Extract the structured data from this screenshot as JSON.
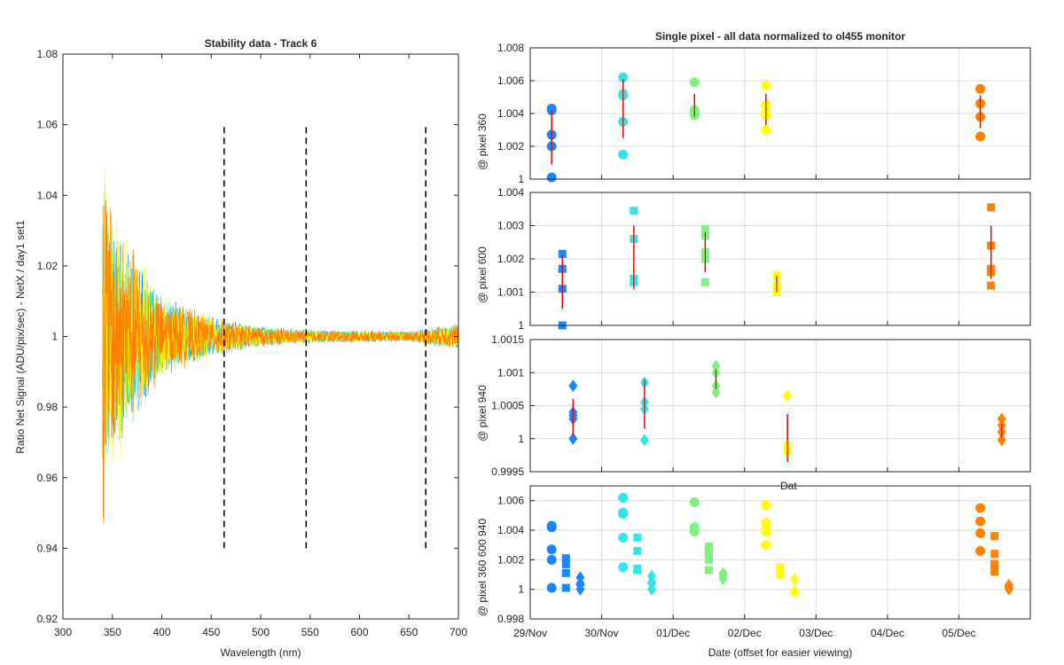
{
  "figure": {
    "left_panel": {
      "title": "Stability data - Track 6",
      "xlabel": "Wavelength (nm)",
      "ylabel": "Ratio Net Signal (ADU/pix/sec) - NetX / day1 set1"
    },
    "right_panel": {
      "title": "Single pixel - all data normalized to ol455 monitor",
      "xlabel": "Date (offset for easier viewing)",
      "hidden_label_fragment": "Dat"
    }
  },
  "chart_data": [
    {
      "type": "line",
      "title": "Stability data - Track 6",
      "xlabel": "Wavelength (nm)",
      "ylabel": "Ratio Net Signal (ADU/pix/sec) - NetX / day1 set1",
      "xlim": [
        300,
        700
      ],
      "ylim": [
        0.92,
        1.08
      ],
      "xticks": [
        "300",
        "350",
        "400",
        "450",
        "500",
        "550",
        "600",
        "650",
        "700"
      ],
      "yticks": [
        "0.92",
        "0.94",
        "0.96",
        "0.98",
        "1",
        "1.02",
        "1.04",
        "1.06",
        "1.08"
      ],
      "grid": false,
      "data_range_x": [
        340,
        700
      ],
      "series": [
        {
          "color": "#1a85ff",
          "envelope": [
            [
              340,
              0.055
            ],
            [
              350,
              0.035
            ],
            [
              400,
              0.012
            ],
            [
              450,
              0.006
            ],
            [
              500,
              0.003
            ],
            [
              550,
              0.002
            ],
            [
              650,
              0.0015
            ],
            [
              700,
              0.004
            ]
          ]
        },
        {
          "color": "#33e6e6",
          "envelope": [
            [
              340,
              0.055
            ],
            [
              350,
              0.035
            ],
            [
              400,
              0.012
            ],
            [
              450,
              0.006
            ],
            [
              500,
              0.003
            ],
            [
              550,
              0.002
            ],
            [
              650,
              0.0015
            ],
            [
              700,
              0.004
            ]
          ]
        },
        {
          "color": "#80f080",
          "envelope": [
            [
              340,
              0.055
            ],
            [
              350,
              0.035
            ],
            [
              400,
              0.012
            ],
            [
              450,
              0.006
            ],
            [
              500,
              0.003
            ],
            [
              550,
              0.002
            ],
            [
              650,
              0.0015
            ],
            [
              700,
              0.004
            ]
          ]
        },
        {
          "color": "#ffff00",
          "envelope": [
            [
              340,
              0.063
            ],
            [
              350,
              0.04
            ],
            [
              400,
              0.012
            ],
            [
              450,
              0.006
            ],
            [
              500,
              0.003
            ],
            [
              550,
              0.002
            ],
            [
              650,
              0.0015
            ],
            [
              700,
              0.004
            ]
          ]
        },
        {
          "color": "#ff8000",
          "envelope": [
            [
              340,
              0.06
            ],
            [
              350,
              0.038
            ],
            [
              400,
              0.012
            ],
            [
              450,
              0.006
            ],
            [
              500,
              0.003
            ],
            [
              550,
              0.002
            ],
            [
              650,
              0.0015
            ],
            [
              700,
              0.004
            ]
          ]
        }
      ],
      "dashed_vlines": [
        {
          "x": 463,
          "y": [
            0.94,
            1.06
          ]
        },
        {
          "x": 546,
          "y": [
            0.94,
            1.06
          ]
        },
        {
          "x": 667,
          "y": [
            0.94,
            1.06
          ]
        }
      ]
    },
    {
      "type": "scatter",
      "title": "Single pixel - all data normalized to ol455 monitor",
      "ylabel": "@ pixel 360",
      "ylim": [
        1,
        1.008
      ],
      "yticks": [
        "1",
        "1.002",
        "1.004",
        "1.006",
        "1.008"
      ],
      "xlim": [
        0,
        7
      ],
      "grid": true,
      "marker": "circle",
      "groups": [
        {
          "color": "#1a85ff",
          "x": 0.3,
          "y": [
            1.0043,
            1.0042,
            1.0027,
            1.002,
            1.0001
          ],
          "err": {
            "center": 1.0025,
            "low": 1.0009,
            "high": 1.0042
          }
        },
        {
          "color": "#33e6e6",
          "x": 1.3,
          "y": [
            1.0062,
            1.0052,
            1.0051,
            1.0035,
            1.0015
          ],
          "err": {
            "center": 1.0043,
            "low": 1.0025,
            "high": 1.0061
          }
        },
        {
          "color": "#80f080",
          "x": 2.3,
          "y": [
            1.0059,
            1.0042,
            1.004,
            1.0039
          ],
          "err": {
            "center": 1.0045,
            "low": 1.0038,
            "high": 1.0052
          }
        },
        {
          "color": "#ffff00",
          "x": 3.3,
          "y": [
            1.0057,
            1.0045,
            1.004,
            1.0039,
            1.003
          ],
          "err": {
            "center": 1.0042,
            "low": 1.0033,
            "high": 1.0052
          }
        },
        {
          "color": "#ff8000",
          "x": 6.3,
          "y": [
            1.0055,
            1.0046,
            1.0038,
            1.0026
          ],
          "err": {
            "center": 1.0041,
            "low": 1.0031,
            "high": 1.0051
          }
        }
      ]
    },
    {
      "type": "scatter",
      "ylabel": "@ pixel 600",
      "ylim": [
        1,
        1.004
      ],
      "yticks": [
        "1",
        "1.001",
        "1.002",
        "1.003",
        "1.004"
      ],
      "xlim": [
        0,
        7
      ],
      "grid": true,
      "marker": "square",
      "groups": [
        {
          "color": "#1a85ff",
          "x": 0.45,
          "y": [
            1.00215,
            1.0017,
            1.0011,
            1.0
          ],
          "err": {
            "center": 1.0013,
            "low": 1.0005,
            "high": 1.0021
          }
        },
        {
          "color": "#33e6e6",
          "x": 1.45,
          "y": [
            1.00345,
            1.0026,
            1.0014,
            1.0013
          ],
          "err": {
            "center": 1.0021,
            "low": 1.0011,
            "high": 1.003
          }
        },
        {
          "color": "#80f080",
          "x": 2.45,
          "y": [
            1.0029,
            1.0027,
            1.0022,
            1.002,
            1.0013
          ],
          "err": {
            "center": 1.0022,
            "low": 1.0016,
            "high": 1.0028
          }
        },
        {
          "color": "#ffff00",
          "x": 3.45,
          "y": [
            1.0015,
            1.0012,
            1.001,
            1.0011
          ],
          "err": {
            "center": 1.0012,
            "low": 1.001,
            "high": 1.0015
          }
        },
        {
          "color": "#ff8000",
          "x": 6.45,
          "y": [
            1.00355,
            1.0024,
            1.0017,
            1.0016,
            1.0012
          ],
          "err": {
            "center": 1.0022,
            "low": 1.0014,
            "high": 1.003
          }
        }
      ]
    },
    {
      "type": "scatter",
      "ylabel": "@ pixel 940",
      "ylim": [
        0.9995,
        1.0015
      ],
      "yticks": [
        "0.9995",
        "1",
        "1.0005",
        "1.001",
        "1.0015"
      ],
      "xlim": [
        0,
        7
      ],
      "grid": true,
      "marker": "diamond",
      "groups": [
        {
          "color": "#1a85ff",
          "x": 0.6,
          "y": [
            1.0008,
            1.0004,
            1.00035,
            1.0003,
            1.0
          ],
          "err": {
            "center": 1.0003,
            "low": 1.00005,
            "high": 1.0006
          }
        },
        {
          "color": "#33e6e6",
          "x": 1.6,
          "y": [
            1.00085,
            1.00055,
            1.00045,
            0.99998
          ],
          "err": {
            "center": 1.0005,
            "low": 1.00015,
            "high": 1.0009
          }
        },
        {
          "color": "#80f080",
          "x": 2.6,
          "y": [
            1.0011,
            1.001,
            1.0008,
            1.0007
          ],
          "err": {
            "center": 1.0009,
            "low": 1.00075,
            "high": 1.00105
          }
        },
        {
          "color": "#ffff00",
          "x": 3.6,
          "y": [
            1.00065,
            0.9999,
            0.99985,
            0.9998
          ],
          "err": {
            "center": 1.0,
            "low": 0.99965,
            "high": 1.00037
          }
        },
        {
          "color": "#ff8000",
          "x": 6.6,
          "y": [
            1.0003,
            1.0002,
            1.0001,
            0.99998
          ],
          "err": {
            "center": 1.00012,
            "low": 1.00002,
            "high": 1.00022
          }
        }
      ]
    },
    {
      "type": "scatter",
      "ylabel": "@ pixel 360  600  940",
      "ylim": [
        0.998,
        1.007
      ],
      "yticks": [
        "0.998",
        "1",
        "1.002",
        "1.004",
        "1.006"
      ],
      "xlim": [
        0,
        7
      ],
      "xticks": [
        "29/Nov",
        "30/Nov",
        "01/Dec",
        "02/Dec",
        "03/Dec",
        "04/Dec",
        "05/Dec"
      ],
      "xlabel": "Date (offset for easier viewing)",
      "grid": true,
      "groups": [
        {
          "color": "#1a85ff",
          "marker": "circle",
          "x": 0.3,
          "y": [
            1.0043,
            1.0042,
            1.0027,
            1.002,
            1.0001
          ]
        },
        {
          "color": "#1a85ff",
          "marker": "square",
          "x": 0.5,
          "y": [
            1.0021,
            1.0017,
            1.0011,
            1.0001
          ]
        },
        {
          "color": "#1a85ff",
          "marker": "diamond",
          "x": 0.7,
          "y": [
            1.0008,
            1.0004,
            1.0003,
            1.0
          ]
        },
        {
          "color": "#33e6e6",
          "marker": "circle",
          "x": 1.3,
          "y": [
            1.0062,
            1.0052,
            1.0051,
            1.0035,
            1.0015
          ]
        },
        {
          "color": "#33e6e6",
          "marker": "square",
          "x": 1.5,
          "y": [
            1.0035,
            1.0026,
            1.0014,
            1.0013
          ]
        },
        {
          "color": "#33e6e6",
          "marker": "diamond",
          "x": 1.7,
          "y": [
            1.0009,
            1.0005,
            1.0004,
            1.0
          ]
        },
        {
          "color": "#80f080",
          "marker": "circle",
          "x": 2.3,
          "y": [
            1.0059,
            1.0042,
            1.004,
            1.0039
          ]
        },
        {
          "color": "#80f080",
          "marker": "square",
          "x": 2.5,
          "y": [
            1.0029,
            1.0027,
            1.0022,
            1.002,
            1.0013
          ]
        },
        {
          "color": "#80f080",
          "marker": "diamond",
          "x": 2.7,
          "y": [
            1.0011,
            1.001,
            1.0008,
            1.0007
          ]
        },
        {
          "color": "#ffff00",
          "marker": "circle",
          "x": 3.3,
          "y": [
            1.0057,
            1.0045,
            1.004,
            1.0039,
            1.003
          ]
        },
        {
          "color": "#ffff00",
          "marker": "square",
          "x": 3.5,
          "y": [
            1.0015,
            1.0012,
            1.001,
            1.0011
          ]
        },
        {
          "color": "#ffff00",
          "marker": "diamond",
          "x": 3.7,
          "y": [
            1.0007,
            0.9999,
            0.9998
          ]
        },
        {
          "color": "#ff8000",
          "marker": "circle",
          "x": 6.3,
          "y": [
            1.0055,
            1.0046,
            1.0038,
            1.0026
          ]
        },
        {
          "color": "#ff8000",
          "marker": "square",
          "x": 6.5,
          "y": [
            1.0036,
            1.0024,
            1.0017,
            1.0016,
            1.0012
          ]
        },
        {
          "color": "#ff8000",
          "marker": "diamond",
          "x": 6.7,
          "y": [
            1.0003,
            1.0002,
            1.0001,
            1.0
          ]
        }
      ]
    }
  ]
}
